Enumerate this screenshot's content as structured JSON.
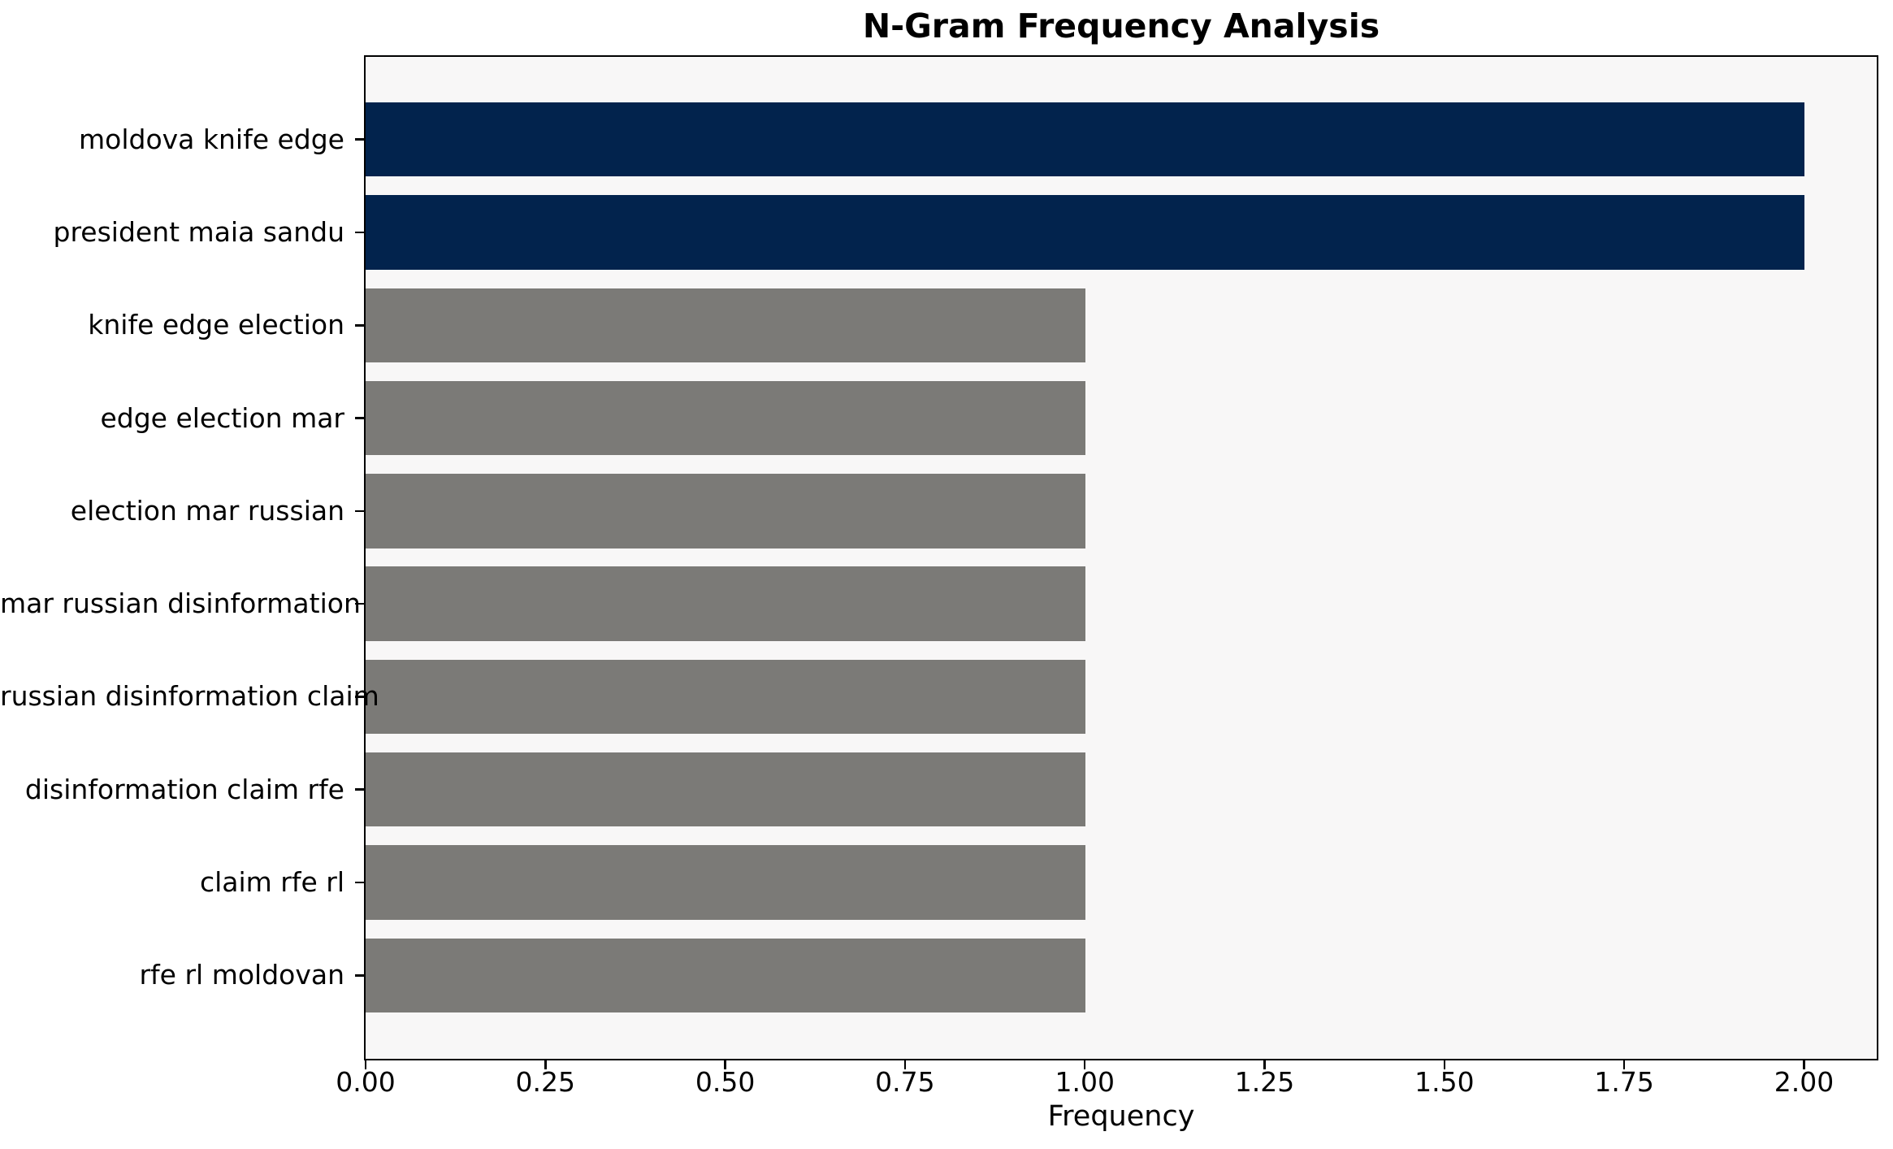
{
  "chart_data": {
    "type": "bar",
    "orientation": "horizontal",
    "title": "N-Gram Frequency Analysis",
    "xlabel": "Frequency",
    "ylabel": "",
    "categories": [
      "moldova knife edge",
      "president maia sandu",
      "knife edge election",
      "edge election mar",
      "election mar russian",
      "mar russian disinformation",
      "russian disinformation claim",
      "disinformation claim rfe",
      "claim rfe rl",
      "rfe rl moldovan"
    ],
    "values": [
      2,
      2,
      1,
      1,
      1,
      1,
      1,
      1,
      1,
      1
    ],
    "bar_colors": [
      "#02234d",
      "#02234d",
      "#7b7a77",
      "#7b7a77",
      "#7b7a77",
      "#7b7a77",
      "#7b7a77",
      "#7b7a77",
      "#7b7a77",
      "#7b7a77"
    ],
    "x_ticks": [
      {
        "value": 0.0,
        "label": "0.00"
      },
      {
        "value": 0.25,
        "label": "0.25"
      },
      {
        "value": 0.5,
        "label": "0.50"
      },
      {
        "value": 0.75,
        "label": "0.75"
      },
      {
        "value": 1.0,
        "label": "1.00"
      },
      {
        "value": 1.25,
        "label": "1.25"
      },
      {
        "value": 1.5,
        "label": "1.50"
      },
      {
        "value": 1.75,
        "label": "1.75"
      },
      {
        "value": 2.0,
        "label": "2.00"
      }
    ],
    "xlim": [
      0,
      2.1
    ],
    "grid": false,
    "legend": null,
    "colors": {
      "highlight_bar": "#02234d",
      "default_bar": "#7b7a77",
      "plot_background": "#f8f7f7",
      "figure_background": "#ffffff",
      "axis": "#000000",
      "text": "#000000"
    }
  }
}
